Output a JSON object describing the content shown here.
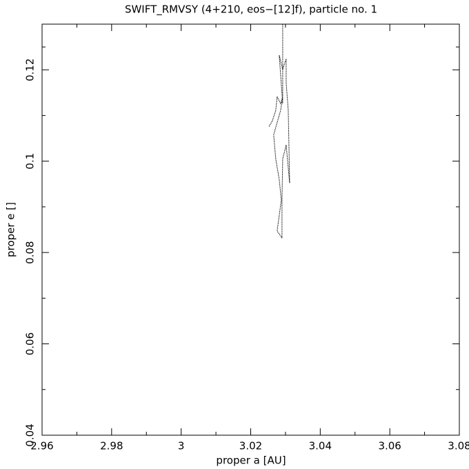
{
  "chart_data": {
    "type": "line",
    "title": "SWIFT_RMVSY (4+210, eos−[12]f), particle no. 1",
    "x_label": "proper a [AU]",
    "y_label": "proper e []",
    "xlim": [
      2.96,
      3.08
    ],
    "ylim": [
      0.04,
      0.13
    ],
    "xticks": [
      2.96,
      2.98,
      3,
      3.02,
      3.04,
      3.06,
      3.08
    ],
    "yticks": [
      0.04,
      0.06,
      0.08,
      0.1,
      0.12
    ],
    "grid": false,
    "series": [
      {
        "color": "#000000",
        "x": [
          3.0253,
          3.0262,
          3.0272,
          3.0276,
          3.0286,
          3.0292,
          3.0286,
          3.0266,
          3.0272,
          3.0282,
          3.0288,
          3.0276,
          3.029,
          3.029,
          3.0292,
          3.0302,
          3.0312,
          3.0308,
          3.0302,
          3.0302,
          3.0292,
          3.0282,
          3.0292,
          3.0292
        ],
        "values": [
          0.1076,
          0.1088,
          0.1111,
          0.1141,
          0.1126,
          0.1141,
          0.1111,
          0.1058,
          0.1005,
          0.096,
          0.0915,
          0.0847,
          0.0832,
          0.0915,
          0.1005,
          0.1035,
          0.0952,
          0.1111,
          0.1171,
          0.1224,
          0.1201,
          0.1232,
          0.1126,
          0.13
        ]
      }
    ]
  }
}
